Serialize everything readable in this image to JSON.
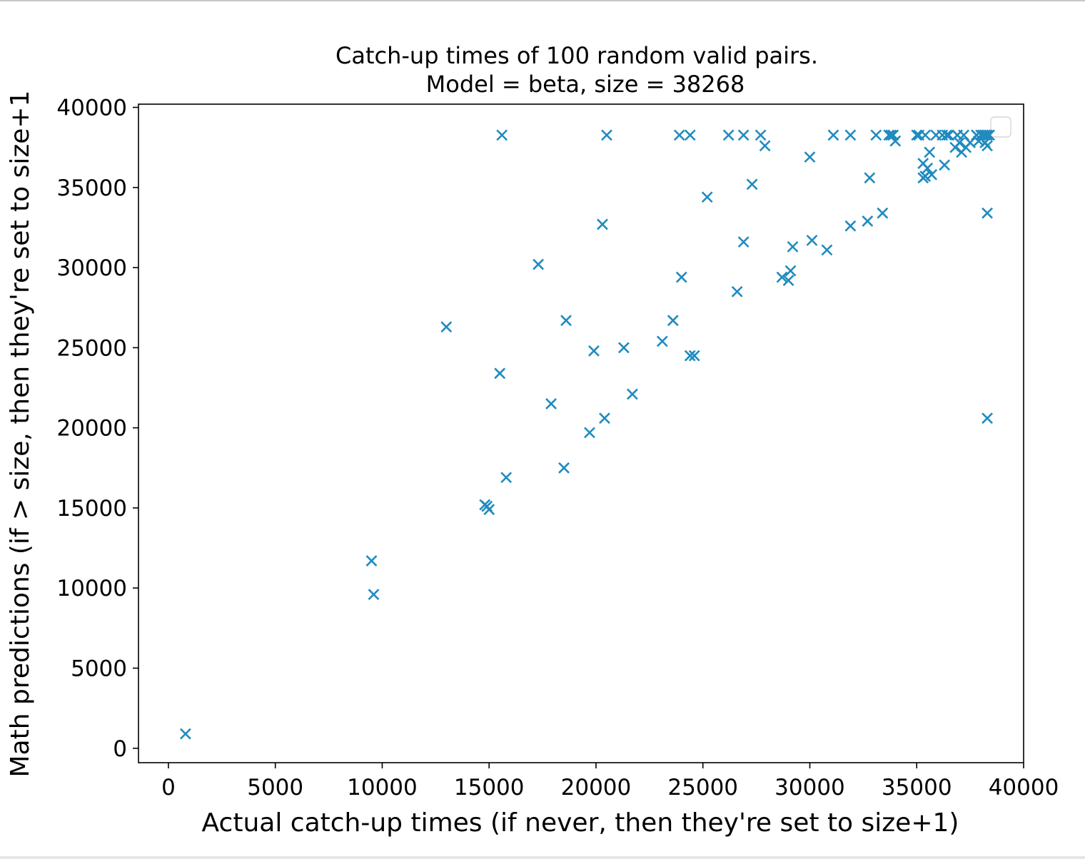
{
  "chart_data": {
    "type": "scatter",
    "title": "Catch-up times of 100 random valid pairs.",
    "subtitle": "Model = beta, size = 38268",
    "xlabel": "Actual catch-up times (if never, then they're set to size+1)",
    "ylabel": "Math predictions (if > size, then they're set to size+1",
    "xlim": [
      -1400,
      40000
    ],
    "ylim": [
      -900,
      40200
    ],
    "x_ticks": [
      0,
      5000,
      10000,
      15000,
      20000,
      25000,
      30000,
      35000,
      40000
    ],
    "y_ticks": [
      0,
      5000,
      10000,
      15000,
      20000,
      25000,
      30000,
      35000,
      40000
    ],
    "grid": false,
    "legend": "top-right (empty)",
    "marker": "x",
    "color": "#1f8bbf",
    "series": [
      {
        "x": [
          800,
          9500,
          9600,
          13000,
          14800,
          15000,
          14900,
          15500,
          15600,
          15800,
          17300,
          17900,
          18500,
          18600,
          19700,
          19900,
          20300,
          20400,
          20500,
          21300,
          21700,
          23100,
          23600,
          24000,
          23900,
          24400,
          24600,
          24400,
          25200,
          26200,
          26600,
          26900,
          26900,
          27300,
          27700,
          27900,
          28700,
          29000,
          29100,
          29200,
          30000,
          30100,
          30800,
          31100,
          31900,
          31900,
          32700,
          32800,
          33100,
          33400,
          33700,
          33800,
          33900,
          34000,
          35000,
          35100,
          35300,
          35300,
          35400,
          35400,
          35500,
          35600,
          35700,
          35900,
          36200,
          36300,
          36400,
          36500,
          36800,
          36900,
          37000,
          37100,
          37200,
          37300,
          37500,
          37800,
          37900,
          38000,
          38100,
          38200,
          38300,
          38300,
          38200,
          38300,
          38300,
          38400,
          38300,
          38100,
          37800,
          36900
        ],
        "y": [
          900,
          11700,
          9600,
          26300,
          15200,
          14900,
          15100,
          23400,
          38268,
          16900,
          30200,
          21500,
          17500,
          26700,
          19700,
          24800,
          32700,
          20600,
          38268,
          25000,
          22100,
          25400,
          26700,
          29400,
          38268,
          24500,
          24500,
          38268,
          34400,
          38268,
          28500,
          31600,
          38268,
          35200,
          38268,
          37600,
          29400,
          29200,
          29800,
          31300,
          36900,
          31700,
          31100,
          38268,
          32600,
          38268,
          32900,
          35600,
          38268,
          33400,
          38268,
          38268,
          38268,
          37900,
          38268,
          38268,
          35600,
          36500,
          38268,
          35700,
          36200,
          37200,
          35800,
          38268,
          38268,
          36400,
          38268,
          38268,
          37500,
          38268,
          37800,
          37200,
          38268,
          37500,
          37800,
          38268,
          37900,
          38268,
          38268,
          38268,
          33400,
          20600,
          37800,
          38268,
          37600,
          38268,
          38268,
          38268,
          38268,
          38268
        ]
      }
    ]
  }
}
